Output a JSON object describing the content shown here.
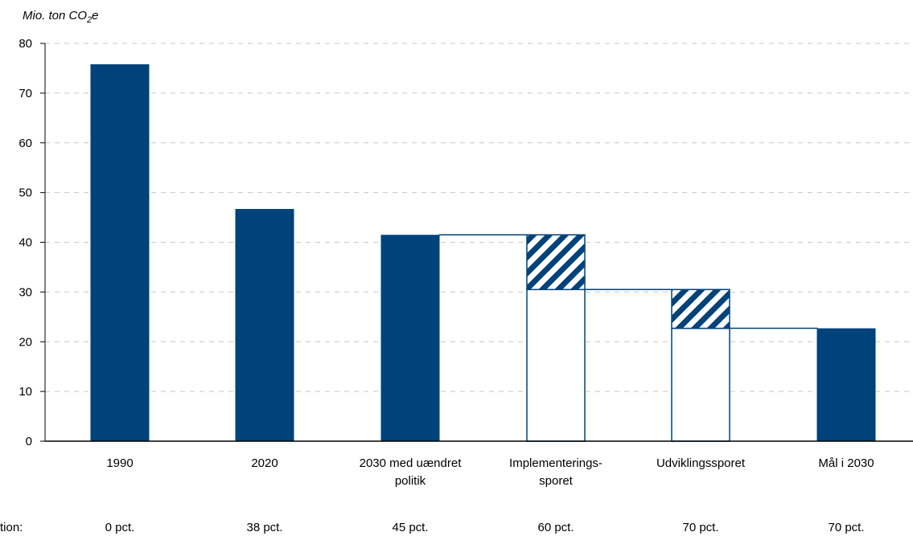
{
  "chart_data": {
    "type": "bar",
    "unit_label": {
      "prefix": "Mio. ton CO",
      "subscript": "2",
      "suffix": "e"
    },
    "ylim": [
      0,
      80
    ],
    "yticks": [
      0,
      10,
      20,
      30,
      40,
      50,
      60,
      70,
      80
    ],
    "grid": "horizontal-dashed",
    "colors": {
      "bar": "#00427A",
      "outline": "#00427A",
      "grid": "#C8C8C8",
      "axis": "#000000"
    },
    "categories": [
      {
        "label": [
          "1990"
        ],
        "reduction": "0 pct."
      },
      {
        "label": [
          "2020"
        ],
        "reduction": "38 pct."
      },
      {
        "label": [
          "2030 med uændret",
          "politik"
        ],
        "reduction": "45 pct."
      },
      {
        "label": [
          "Implementerings-",
          "sporet"
        ],
        "reduction": "60 pct."
      },
      {
        "label": [
          "Udviklingssporet"
        ],
        "reduction": "70 pct."
      },
      {
        "label": [
          "Mål i 2030"
        ],
        "reduction": "70 pct."
      }
    ],
    "reduction_row_label": "tion:",
    "bars": [
      {
        "category": 0,
        "kind": "solid",
        "value": 75.8
      },
      {
        "category": 1,
        "kind": "solid",
        "value": 46.7
      },
      {
        "category": 2,
        "kind": "solid",
        "value": 41.5
      },
      {
        "category": 3,
        "kind": "open",
        "value": 30.5
      },
      {
        "category": 3,
        "kind": "hatched",
        "from": 30.5,
        "to": 41.5
      },
      {
        "category": 4,
        "kind": "open",
        "value": 22.7
      },
      {
        "category": 4,
        "kind": "hatched",
        "from": 22.7,
        "to": 30.5
      },
      {
        "category": 5,
        "kind": "solid",
        "value": 22.7
      }
    ],
    "connectors": [
      {
        "from_category": 2,
        "to_category": 3,
        "value": 41.5
      },
      {
        "from_category": 3,
        "to_category": 4,
        "value": 30.5
      },
      {
        "from_category": 4,
        "to_category": 5,
        "value": 22.7
      }
    ]
  }
}
